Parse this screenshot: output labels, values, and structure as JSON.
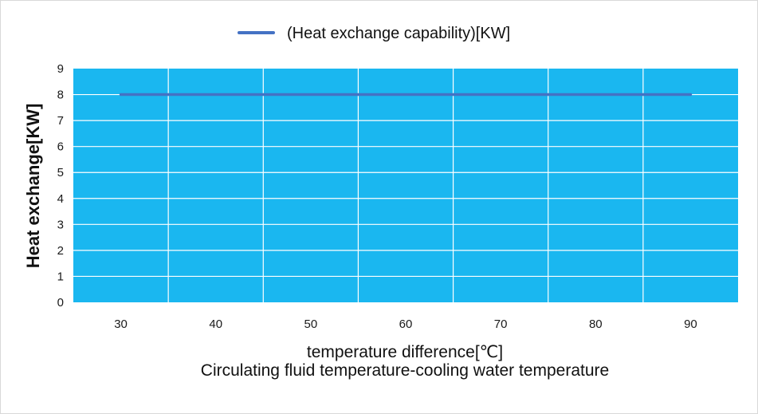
{
  "chart_data": {
    "type": "line",
    "series": [
      {
        "name": "(Heat exchange capability)[KW]",
        "x": [
          30,
          90
        ],
        "values": [
          8,
          8
        ],
        "color": "#4472c4"
      }
    ],
    "x_ticks": [
      "30",
      "40",
      "50",
      "60",
      "70",
      "80",
      "90"
    ],
    "y_ticks": [
      "0",
      "1",
      "2",
      "3",
      "4",
      "5",
      "6",
      "7",
      "8",
      "9"
    ],
    "ylim": [
      0,
      9
    ],
    "ylabel": "Heat exchange[KW]",
    "xlabel": "temperature difference[℃]",
    "xlabel_sub": "Circulating fluid temperature-cooling water temperature",
    "legend_position": "top-center",
    "plot_background": "#1ab7f0",
    "grid": true
  }
}
